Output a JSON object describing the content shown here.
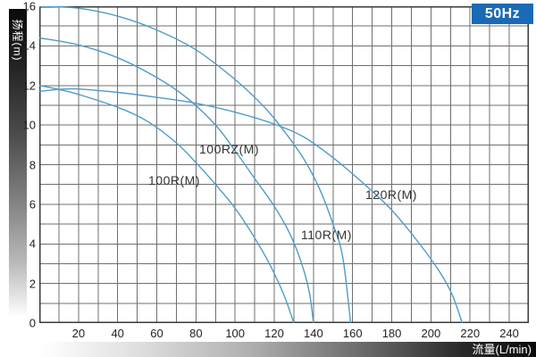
{
  "header": {
    "frequency_badge": "50Hz"
  },
  "colors": {
    "badge_blue": "#1b6ab5",
    "curve_blue": "#4f9cc9",
    "grid_gray": "#6f6f6f",
    "border_gray": "#3a3a3a",
    "tick_text": "#222222",
    "label_text": "#333333"
  },
  "axes": {
    "y_title": "扬程(m)",
    "x_title": "流量(L/min)",
    "origin_label": "0",
    "x_tick_labels": [
      20,
      40,
      60,
      80,
      100,
      120,
      140,
      160,
      180,
      200,
      220,
      240
    ],
    "y_tick_labels": [
      16,
      14,
      12,
      10,
      8,
      6,
      4,
      2,
      0
    ]
  },
  "chart_data": {
    "type": "line",
    "title": "",
    "xlabel": "流量(L/min)",
    "ylabel": "扬程(m)",
    "xlim": [
      0,
      250
    ],
    "ylim": [
      0,
      16
    ],
    "x_grid_step": 10,
    "y_grid_step": 1,
    "grid": true,
    "legend_position": "labels-on-curves",
    "frequency": "50Hz",
    "series": [
      {
        "name": "100R(M)",
        "points": [
          [
            0,
            12.0
          ],
          [
            10,
            11.8
          ],
          [
            20,
            11.55
          ],
          [
            40,
            10.9
          ],
          [
            55,
            10.2
          ],
          [
            70,
            9.1
          ],
          [
            80,
            8.1
          ],
          [
            90,
            7.0
          ],
          [
            100,
            5.8
          ],
          [
            110,
            4.3
          ],
          [
            118,
            2.9
          ],
          [
            125,
            1.4
          ],
          [
            130,
            0
          ]
        ]
      },
      {
        "name": "100RZ(M)",
        "points": [
          [
            0,
            14.4
          ],
          [
            20,
            14.05
          ],
          [
            40,
            13.4
          ],
          [
            60,
            12.4
          ],
          [
            75,
            11.4
          ],
          [
            90,
            10.0
          ],
          [
            100,
            8.7
          ],
          [
            110,
            7.3
          ],
          [
            120,
            5.9
          ],
          [
            128,
            4.5
          ],
          [
            134,
            3.0
          ],
          [
            138,
            1.5
          ],
          [
            140,
            0
          ]
        ]
      },
      {
        "name": "110R(M)",
        "points": [
          [
            0,
            16.0
          ],
          [
            20,
            15.9
          ],
          [
            40,
            15.5
          ],
          [
            60,
            14.8
          ],
          [
            80,
            13.8
          ],
          [
            100,
            12.3
          ],
          [
            115,
            10.9
          ],
          [
            125,
            9.7
          ],
          [
            135,
            8.3
          ],
          [
            143,
            6.8
          ],
          [
            150,
            5.0
          ],
          [
            155,
            3.3
          ],
          [
            159,
            0
          ]
        ]
      },
      {
        "name": "120R(M)",
        "points": [
          [
            0,
            11.7
          ],
          [
            10,
            11.8
          ],
          [
            20,
            11.82
          ],
          [
            40,
            11.65
          ],
          [
            60,
            11.4
          ],
          [
            80,
            11.1
          ],
          [
            100,
            10.65
          ],
          [
            120,
            10.05
          ],
          [
            135,
            9.4
          ],
          [
            150,
            8.35
          ],
          [
            165,
            7.1
          ],
          [
            180,
            5.7
          ],
          [
            195,
            3.9
          ],
          [
            205,
            2.5
          ],
          [
            211,
            1.4
          ],
          [
            216,
            0
          ]
        ]
      }
    ]
  }
}
